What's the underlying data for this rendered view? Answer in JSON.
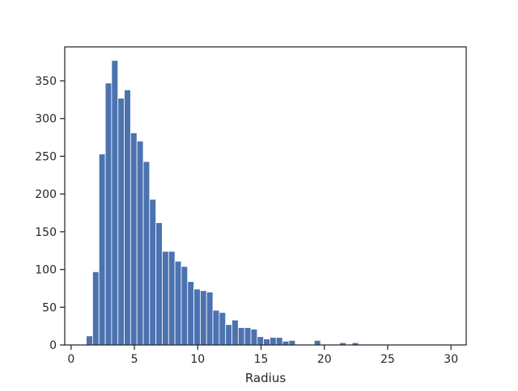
{
  "chart_data": {
    "type": "histogram",
    "xlabel": "Radius",
    "ylabel": "",
    "title": "",
    "xlim": [
      -0.5,
      31.2
    ],
    "ylim": [
      0,
      395
    ],
    "xticks": [
      0,
      5,
      10,
      15,
      20,
      25,
      30
    ],
    "yticks": [
      0,
      50,
      100,
      150,
      200,
      250,
      300,
      350
    ],
    "bar_width": 0.5,
    "color": "#4c72b0",
    "bins_start": [
      1.2,
      1.7,
      2.2,
      2.7,
      3.2,
      3.7,
      4.2,
      4.7,
      5.2,
      5.7,
      6.2,
      6.7,
      7.2,
      7.7,
      8.2,
      8.7,
      9.2,
      9.7,
      10.2,
      10.7,
      11.2,
      11.7,
      12.2,
      12.7,
      13.2,
      13.7,
      14.2,
      14.7,
      15.2,
      15.7,
      16.2,
      16.7,
      17.2,
      17.7,
      18.2,
      18.7,
      19.2,
      19.7,
      20.2,
      20.7,
      21.2,
      21.7,
      22.2
    ],
    "counts": [
      12,
      97,
      253,
      347,
      377,
      327,
      338,
      281,
      270,
      243,
      193,
      162,
      124,
      124,
      111,
      104,
      84,
      74,
      72,
      70,
      46,
      43,
      27,
      33,
      23,
      23,
      21,
      11,
      8,
      10,
      10,
      5,
      6,
      0,
      0,
      0,
      6,
      0,
      0,
      0,
      3,
      0,
      3
    ],
    "grid": false,
    "legend": "none"
  }
}
